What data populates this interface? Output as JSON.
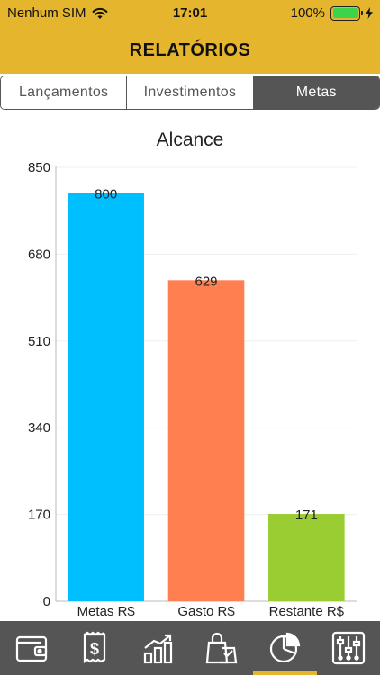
{
  "status": {
    "carrier": "Nenhum SIM",
    "time": "17:01",
    "battery": "100%"
  },
  "header": {
    "title": "RELATÓRIOS"
  },
  "segments": [
    {
      "label": "Lançamentos",
      "active": false
    },
    {
      "label": "Investimentos",
      "active": false
    },
    {
      "label": "Metas",
      "active": true
    }
  ],
  "chart_data": {
    "type": "bar",
    "title": "Alcance",
    "categories": [
      "Metas R$",
      "Gasto R$",
      "Restante R$"
    ],
    "values": [
      800,
      629,
      171
    ],
    "value_labels": [
      "800",
      "629",
      "171"
    ],
    "colors": [
      "#00BFFF",
      "#FF7F50",
      "#9ACD32"
    ],
    "ylim": [
      0,
      850
    ],
    "yticks": [
      0,
      170,
      340,
      510,
      680,
      850
    ],
    "xlabel": "",
    "ylabel": "",
    "grid": true
  },
  "tabs": [
    {
      "name": "wallet-icon",
      "active": false
    },
    {
      "name": "receipt-icon",
      "active": false
    },
    {
      "name": "growth-chart-icon",
      "active": false
    },
    {
      "name": "shopping-bag-icon",
      "active": false
    },
    {
      "name": "pie-chart-icon",
      "active": true
    },
    {
      "name": "settings-sliders-icon",
      "active": false
    }
  ],
  "colors": {
    "accent": "#E6B52E",
    "dark": "#555555"
  }
}
